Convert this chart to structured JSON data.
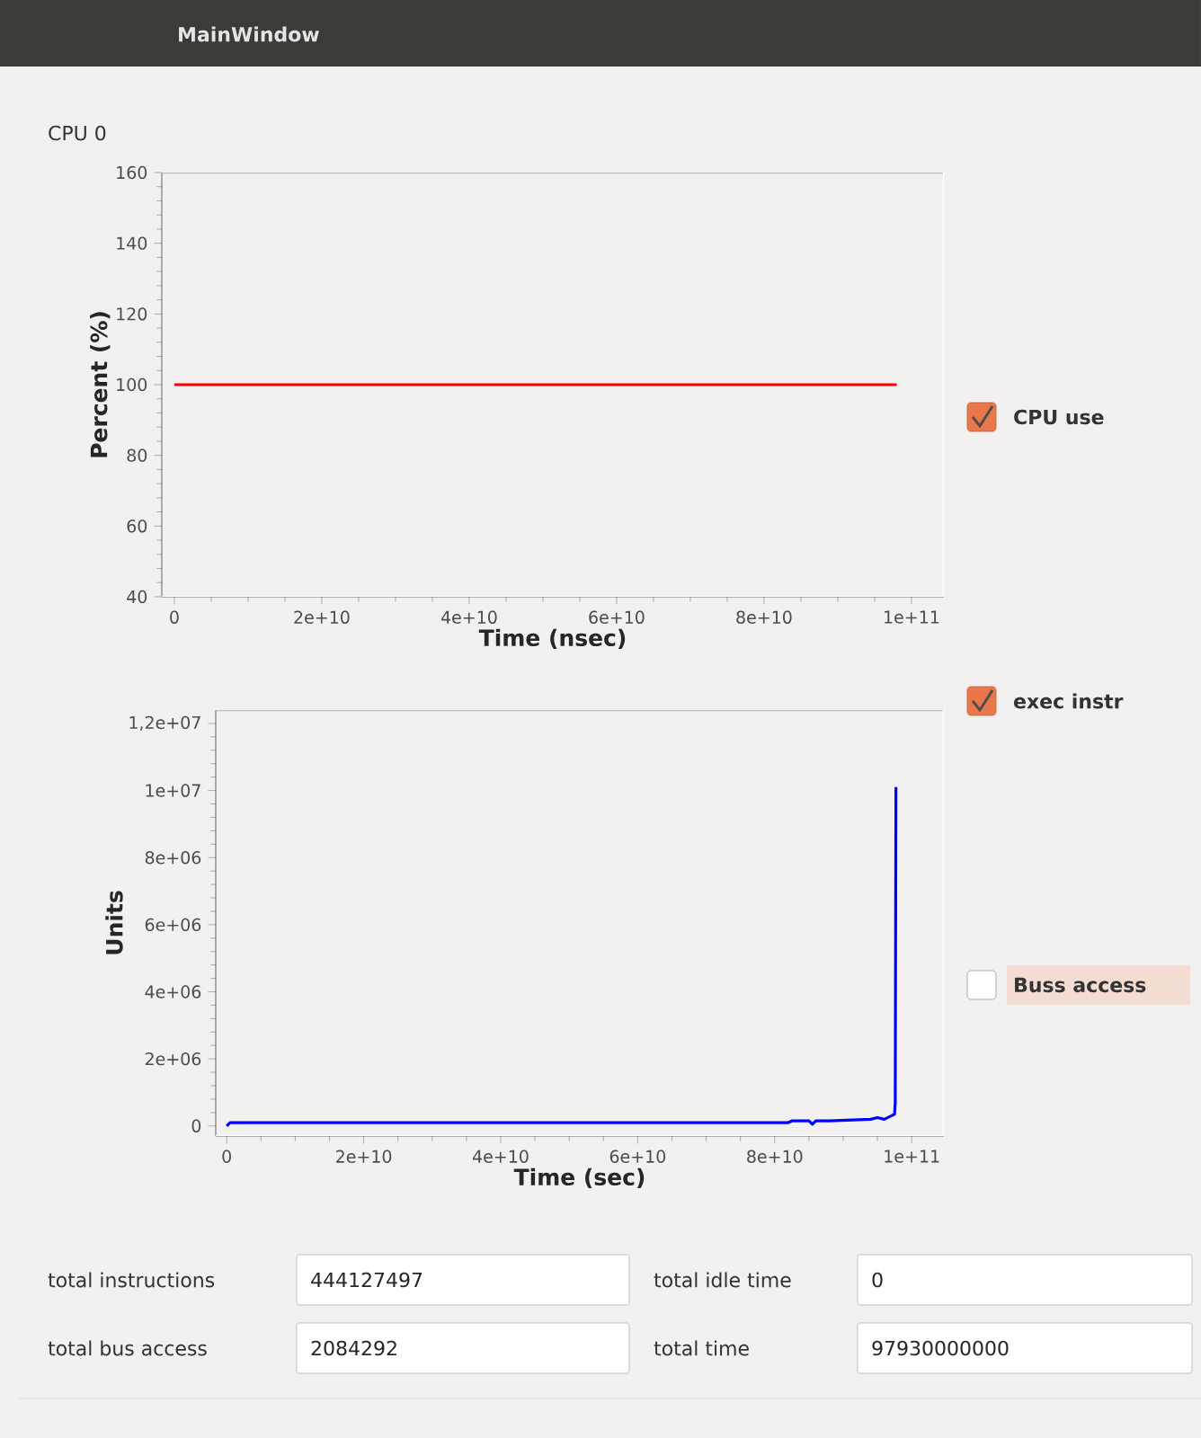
{
  "chart_data": [
    {
      "type": "line",
      "title": "CPU  0",
      "xlabel": "Time (nsec)",
      "ylabel": "Percent (%)",
      "x": [
        0,
        98000000000
      ],
      "series": [
        {
          "color": "#ff0000",
          "values": [
            100,
            100
          ]
        }
      ],
      "xlim": [
        -1700000000,
        104400000000
      ],
      "ylim": [
        40,
        160
      ],
      "xticks": [
        {
          "value": 0,
          "label": "0"
        },
        {
          "value": 20000000000,
          "label": "2e+10"
        },
        {
          "value": 40000000000,
          "label": "4e+10"
        },
        {
          "value": 60000000000,
          "label": "6e+10"
        },
        {
          "value": 80000000000,
          "label": "8e+10"
        },
        {
          "value": 100000000000,
          "label": "1e+11"
        }
      ],
      "yticks": [
        40,
        60,
        80,
        100,
        120,
        140,
        160
      ]
    },
    {
      "type": "line",
      "xlabel": "Time (sec)",
      "ylabel": "Units",
      "x": [
        0,
        500000000,
        20000000000,
        40000000000,
        60000000000,
        82000000000,
        82500000000,
        85000000000,
        85500000000,
        86000000000,
        88000000000,
        94000000000,
        95000000000,
        96000000000,
        97000000000,
        97500000000,
        97600000000,
        97700000000
      ],
      "series": [
        {
          "color": "#0000ff",
          "values": [
            0,
            100000,
            100000,
            100000,
            100000,
            100000,
            150000,
            150000,
            50000,
            150000,
            150000,
            200000,
            250000,
            200000,
            300000,
            350000,
            700000,
            10100000
          ]
        }
      ],
      "xlim": [
        -1600000000,
        104700000000
      ],
      "ylim": [
        -300000,
        12400000
      ],
      "xticks": [
        {
          "value": 0,
          "label": "0"
        },
        {
          "value": 20000000000,
          "label": "2e+10"
        },
        {
          "value": 40000000000,
          "label": "4e+10"
        },
        {
          "value": 60000000000,
          "label": "6e+10"
        },
        {
          "value": 80000000000,
          "label": "8e+10"
        },
        {
          "value": 100000000000,
          "label": "1e+11"
        }
      ],
      "yticks": [
        {
          "value": 0,
          "label": "0"
        },
        {
          "value": 2000000,
          "label": "2e+06"
        },
        {
          "value": 4000000,
          "label": "4e+06"
        },
        {
          "value": 6000000,
          "label": "6e+06"
        },
        {
          "value": 8000000,
          "label": "8e+06"
        },
        {
          "value": 10000000,
          "label": "1e+07"
        },
        {
          "value": 12000000,
          "label": "1,2e+07"
        }
      ]
    },
    {
      "type": "other",
      "title": "MainWindow",
      "annotations": [
        "CPU use",
        "exec instr",
        "Buss access",
        "total instructions",
        "444127497",
        "total idle time",
        "0",
        "total bus access",
        "2084292",
        "total time",
        "97930000000"
      ]
    }
  ]
}
